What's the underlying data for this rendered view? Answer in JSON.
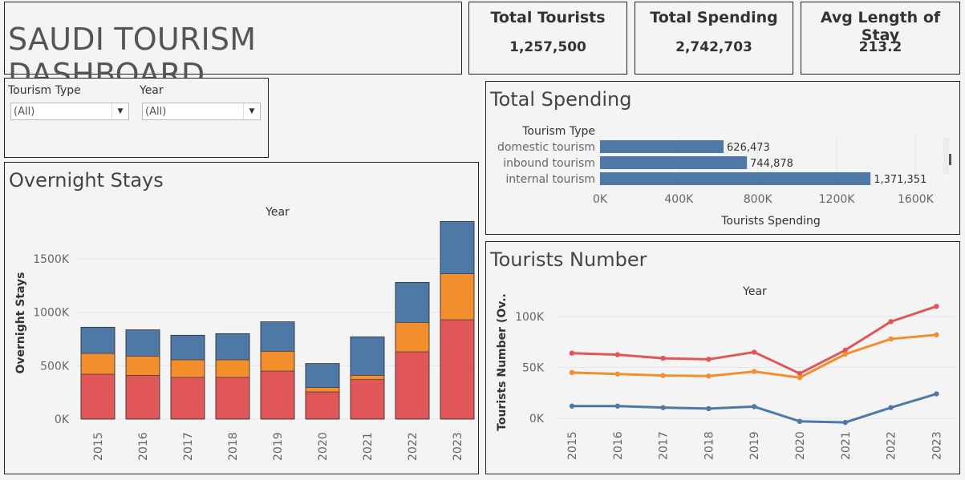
{
  "header": {
    "title": "SAUDI TOURISM DASHBOARD"
  },
  "kpis": [
    {
      "label": "Total Tourists",
      "value": "1,257,500"
    },
    {
      "label": "Total Spending",
      "value": "2,742,703"
    },
    {
      "label": "Avg Length of Stay",
      "value": "213.2"
    }
  ],
  "filters": {
    "tourism_type": {
      "label": "Tourism Type",
      "value": "(All)"
    },
    "year": {
      "label": "Year",
      "value": "(All)"
    }
  },
  "colors": {
    "domestic": "#4e79a7",
    "inbound": "#f28e2b",
    "internal": "#e15759"
  },
  "chart_data": [
    {
      "type": "bar",
      "title": "Overnight Stays",
      "xlabel": "Year",
      "ylabel": "Overnight Stays",
      "categories": [
        "2015",
        "2016",
        "2017",
        "2018",
        "2019",
        "2020",
        "2021",
        "2022",
        "2023"
      ],
      "series": [
        {
          "values": [
            420000,
            410000,
            390000,
            390000,
            450000,
            255000,
            370000,
            630000,
            930000
          ]
        },
        {
          "values": [
            195000,
            180000,
            165000,
            165000,
            185000,
            40000,
            40000,
            275000,
            430000
          ]
        },
        {
          "values": [
            245000,
            245000,
            230000,
            245000,
            275000,
            225000,
            360000,
            375000,
            490000
          ]
        }
      ],
      "yticks": [
        "0K",
        "500K",
        "1000K",
        "1500K"
      ],
      "ylim": [
        0,
        1950000
      ]
    },
    {
      "type": "bar",
      "title": "Total Spending",
      "xlabel": "Tourists Spending",
      "ylabel": "Tourism Type",
      "orientation": "horizontal",
      "categories": [
        "domestic tourism",
        "inbound tourism",
        "internal tourism"
      ],
      "values": [
        626473,
        744878,
        1371351
      ],
      "labels": [
        "626,473",
        "744,878",
        "1,371,351"
      ],
      "xticks": [
        "0K",
        "400K",
        "800K",
        "1200K",
        "1600K"
      ],
      "xlim": [
        0,
        1700000
      ]
    },
    {
      "type": "line",
      "title": "Tourists Number",
      "xlabel": "Year",
      "ylabel": "Tourists Number (Ov..",
      "categories": [
        "2015",
        "2016",
        "2017",
        "2018",
        "2019",
        "2020",
        "2021",
        "2022",
        "2023"
      ],
      "series": [
        {
          "values": [
            64000,
            62500,
            59000,
            58000,
            65000,
            44000,
            67000,
            95000,
            110000
          ]
        },
        {
          "values": [
            45000,
            43500,
            42000,
            41500,
            46000,
            40000,
            63000,
            78000,
            82000
          ]
        },
        {
          "values": [
            12000,
            12000,
            10500,
            9500,
            11500,
            -3000,
            -4000,
            10500,
            24000
          ]
        }
      ],
      "yticks": [
        "0K",
        "50K",
        "100K"
      ],
      "ylim": [
        -10000,
        120000
      ]
    }
  ]
}
